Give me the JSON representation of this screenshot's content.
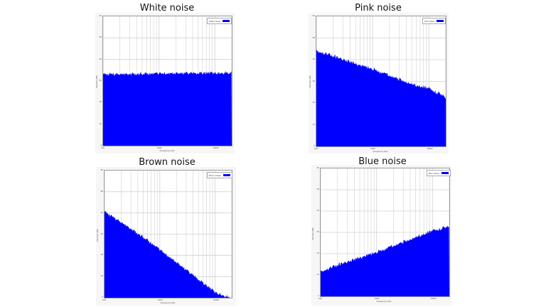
{
  "colors": {
    "fill": "#0000ff",
    "grid": "#d0d0d0",
    "panel": "#f6f6f6"
  },
  "chart_data": [
    {
      "type": "area",
      "title": "White noise",
      "legend": "White Noise",
      "xlabel": "Frequency (Hz)",
      "ylabel": "Intensity (dB)",
      "xscale": "log",
      "x_ticks": [
        "100",
        "1000",
        "10000"
      ],
      "y_ticks": [
        "0",
        "10",
        "20",
        "30",
        "40",
        "50",
        "60"
      ],
      "x": [
        100,
        200,
        500,
        1000,
        2000,
        5000,
        10000,
        20000
      ],
      "values": [
        33.5,
        33.6,
        33.7,
        33.8,
        33.9,
        34.0,
        34.1,
        34.2
      ]
    },
    {
      "type": "area",
      "title": "Pink noise",
      "legend": "Pink Noise",
      "xlabel": "Frequency (Hz)",
      "ylabel": "Intensity (dB)",
      "xscale": "log",
      "x_ticks": [
        "100",
        "1000",
        "10000"
      ],
      "y_ticks": [
        "0",
        "10",
        "20",
        "30",
        "40",
        "50",
        "60"
      ],
      "x": [
        100,
        200,
        500,
        1000,
        2000,
        5000,
        10000,
        20000
      ],
      "values": [
        44.5,
        42,
        38.5,
        36,
        33,
        29,
        27,
        23
      ]
    },
    {
      "type": "area",
      "title": "Brown noise",
      "legend": "Brown Noise",
      "xlabel": "Frequency (Hz)",
      "ylabel": "Intensity (dB)",
      "xscale": "log",
      "x_ticks": [
        "100",
        "1000",
        "10000"
      ],
      "y_ticks": [
        "0",
        "10",
        "20",
        "30",
        "40",
        "50",
        "60"
      ],
      "x": [
        100,
        200,
        500,
        1000,
        2000,
        5000,
        10000,
        20000
      ],
      "values": [
        41,
        36,
        29,
        23,
        17,
        9,
        3,
        0
      ]
    },
    {
      "type": "area",
      "title": "Blue noise",
      "legend": "Blue Noise",
      "xlabel": "Frequency (Hz)",
      "ylabel": "Intensity (dB)",
      "xscale": "log",
      "x_ticks": [
        "100",
        "1000",
        "10000"
      ],
      "y_ticks": [
        "0",
        "10",
        "20",
        "30",
        "40",
        "50",
        "60"
      ],
      "x": [
        100,
        200,
        500,
        1000,
        2000,
        5000,
        10000,
        20000
      ],
      "values": [
        12,
        15,
        18.5,
        21,
        24,
        28,
        31,
        33
      ]
    }
  ]
}
